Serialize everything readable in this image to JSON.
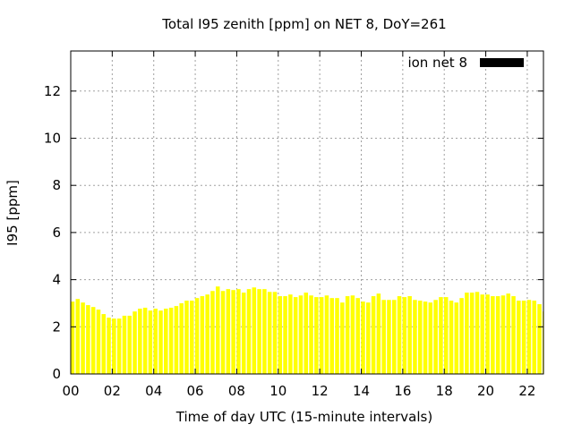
{
  "chart_data": {
    "type": "bar",
    "title": "Total I95 zenith [ppm] on NET 8, DoY=261",
    "xlabel": "Time of day UTC (15-minute intervals)",
    "ylabel": "I95 [ppm]",
    "xlim": [
      0,
      22.78
    ],
    "ylim": [
      0,
      13.7
    ],
    "xticks": [
      0,
      2,
      4,
      6,
      8,
      10,
      12,
      14,
      16,
      18,
      20,
      22
    ],
    "xtick_labels": [
      "00",
      "02",
      "04",
      "06",
      "08",
      "10",
      "12",
      "14",
      "16",
      "18",
      "20",
      "22"
    ],
    "yticks": [
      0,
      2,
      4,
      6,
      8,
      10,
      12
    ],
    "ytick_labels": [
      "0",
      "2",
      "4",
      "6",
      "8",
      "10",
      "12"
    ],
    "grid": true,
    "legend_position": "top-right",
    "bar_color": "#ffff00",
    "series": [
      {
        "name": "ion net 8",
        "legend_color": "#000000",
        "x_start_hour": 0,
        "x_step_hours": 0.25,
        "values": [
          3.07,
          3.18,
          3.03,
          2.92,
          2.84,
          2.73,
          2.54,
          2.39,
          2.35,
          2.35,
          2.47,
          2.47,
          2.65,
          2.77,
          2.81,
          2.69,
          2.77,
          2.69,
          2.77,
          2.81,
          2.88,
          3.0,
          3.11,
          3.11,
          3.22,
          3.3,
          3.37,
          3.52,
          3.71,
          3.52,
          3.6,
          3.56,
          3.6,
          3.45,
          3.6,
          3.67,
          3.6,
          3.6,
          3.48,
          3.48,
          3.3,
          3.3,
          3.37,
          3.26,
          3.33,
          3.45,
          3.33,
          3.26,
          3.26,
          3.33,
          3.22,
          3.22,
          3.03,
          3.3,
          3.33,
          3.22,
          3.07,
          3.03,
          3.3,
          3.41,
          3.14,
          3.14,
          3.14,
          3.3,
          3.26,
          3.3,
          3.14,
          3.11,
          3.07,
          3.03,
          3.14,
          3.26,
          3.26,
          3.11,
          3.03,
          3.22,
          3.45,
          3.45,
          3.48,
          3.37,
          3.37,
          3.3,
          3.3,
          3.33,
          3.41,
          3.3,
          3.11,
          3.11,
          3.14,
          3.11,
          2.96,
          2.65
        ]
      }
    ]
  }
}
